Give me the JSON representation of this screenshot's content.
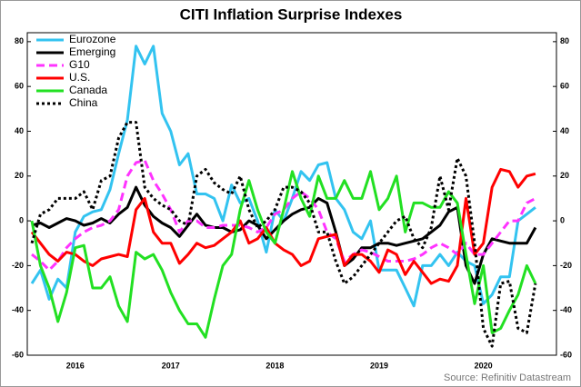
{
  "chart_data": {
    "type": "line",
    "title": "CITI Inflation Surprise Indexes",
    "source": "Source: Refinitiv Datastream",
    "categories": [
      null,
      null,
      null,
      null,
      null,
      "2016",
      null,
      null,
      null,
      null,
      null,
      null,
      null,
      null,
      null,
      null,
      "2017",
      null,
      null,
      null,
      null,
      null,
      null,
      null,
      null,
      null,
      null,
      null,
      "2018",
      null,
      null,
      null,
      null,
      null,
      null,
      null,
      null,
      null,
      null,
      null,
      "2019",
      null,
      null,
      null,
      null,
      null,
      null,
      null,
      null,
      null,
      null,
      null,
      "2020",
      null,
      null,
      null,
      null,
      null,
      null
    ],
    "ylim": [
      -60,
      84
    ],
    "yticks": [
      -60,
      -40,
      -20,
      0,
      20,
      40,
      60,
      80
    ],
    "y2lim": [
      -60,
      84
    ],
    "y2ticks": [
      -60,
      -40,
      -20,
      0,
      20,
      40,
      60,
      80
    ],
    "grid": false,
    "legend": "top-left",
    "series": [
      {
        "name": "Eurozone",
        "color": "#33c3f0",
        "dash": "solid",
        "values": [
          -28,
          -22,
          -35,
          -26,
          -30,
          -5,
          2,
          4,
          5,
          14,
          30,
          45,
          78,
          70,
          78,
          48,
          40,
          25,
          30,
          12,
          12,
          10,
          0,
          16,
          8,
          10,
          0,
          -14,
          5,
          0,
          10,
          22,
          18,
          25,
          26,
          10,
          5,
          -5,
          -8,
          0,
          -22,
          -22,
          -22,
          -30,
          -38,
          -20,
          -20,
          -15,
          -20,
          -14,
          -18,
          -20,
          -37,
          -33,
          -25,
          -25,
          0,
          3,
          6
        ]
      },
      {
        "name": "Emerging",
        "color": "#000000",
        "dash": "solid",
        "values": [
          -2,
          -1,
          -3,
          -1,
          1,
          0,
          -2,
          -1,
          1,
          -1,
          3,
          6,
          15,
          7,
          2,
          -1,
          -3,
          -7,
          -2,
          3,
          -2,
          -3,
          -3,
          -5,
          -4,
          0,
          -2,
          -8,
          -4,
          0,
          3,
          5,
          6,
          10,
          8,
          -5,
          -20,
          -17,
          -12,
          -12,
          -10,
          -10,
          -11,
          -10,
          -9,
          -8,
          -5,
          -2,
          4,
          6,
          -20,
          -28,
          -15,
          -8,
          -9,
          -10,
          -10,
          -10,
          -3
        ]
      },
      {
        "name": "G10",
        "color": "#ff33ff",
        "dash": "dashed",
        "values": [
          -15,
          -18,
          -22,
          -18,
          -12,
          -8,
          -5,
          -3,
          -2,
          0,
          5,
          20,
          26,
          27,
          18,
          12,
          5,
          -5,
          0,
          0,
          -3,
          -3,
          -2,
          -2,
          -2,
          -3,
          -5,
          -3,
          3,
          5,
          10,
          13,
          10,
          5,
          -5,
          -8,
          -18,
          -15,
          -13,
          -14,
          -16,
          -18,
          -18,
          -18,
          -17,
          -15,
          -12,
          -10,
          -12,
          -15,
          -10,
          -15,
          -15,
          -10,
          -5,
          0,
          0,
          8,
          10
        ]
      },
      {
        "name": "U.S.",
        "color": "#ff0000",
        "dash": "solid",
        "values": [
          -5,
          -10,
          -15,
          -18,
          -14,
          -15,
          -18,
          -20,
          -17,
          -16,
          -15,
          -16,
          5,
          10,
          -5,
          -10,
          -10,
          -19,
          -15,
          -10,
          -12,
          -11,
          -8,
          -5,
          0,
          -10,
          -8,
          -3,
          -10,
          -13,
          -15,
          -20,
          -18,
          -8,
          -7,
          -6,
          -20,
          -15,
          -15,
          -18,
          -23,
          -13,
          -15,
          -24,
          -18,
          -23,
          -28,
          -26,
          -27,
          -20,
          10,
          -15,
          -10,
          15,
          23,
          22,
          15,
          20,
          21
        ]
      },
      {
        "name": "Canada",
        "color": "#22e022",
        "dash": "solid",
        "values": [
          0,
          -20,
          -30,
          -45,
          -32,
          -12,
          -11,
          -30,
          -30,
          -25,
          -38,
          -45,
          -14,
          -17,
          -15,
          -22,
          -32,
          -40,
          -46,
          -46,
          -52,
          -35,
          -20,
          -15,
          5,
          18,
          5,
          -5,
          -10,
          5,
          22,
          10,
          2,
          20,
          10,
          10,
          18,
          10,
          10,
          22,
          5,
          10,
          20,
          -5,
          8,
          8,
          6,
          6,
          13,
          8,
          -15,
          -37,
          -20,
          -50,
          -48,
          -40,
          -33,
          -20,
          -28
        ]
      },
      {
        "name": "China",
        "color": "#000000",
        "dash": "dotted",
        "values": [
          -10,
          3,
          5,
          10,
          10,
          10,
          13,
          5,
          18,
          20,
          37,
          44,
          44,
          15,
          10,
          7,
          5,
          0,
          -2,
          20,
          23,
          17,
          14,
          12,
          20,
          5,
          -3,
          0,
          5,
          15,
          15,
          13,
          8,
          -5,
          -5,
          -18,
          -28,
          -25,
          -20,
          -15,
          -10,
          -5,
          0,
          2,
          -8,
          -12,
          -3,
          20,
          5,
          28,
          20,
          -10,
          -48,
          -56,
          -28,
          -27,
          -48,
          -50,
          -28
        ]
      }
    ]
  }
}
